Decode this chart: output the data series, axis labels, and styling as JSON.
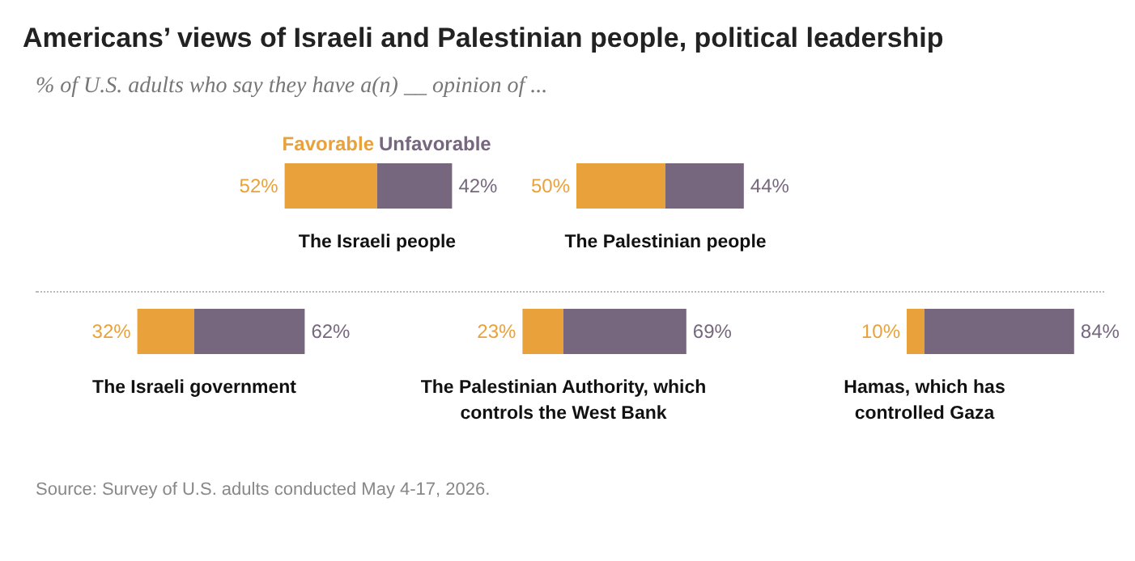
{
  "chart_data": [
    {
      "type": "bar",
      "orientation": "horizontal",
      "title": "Americans’ views of Israeli and Palestinian people, political leadership",
      "subtitle": "% of U.S. adults who say they have a(n) __ opinion of ...",
      "annotations": [
        "Source: Survey of U.S. adults conducted May 4-17, 2026."
      ],
      "xlabel": "The Israeli people",
      "stacked": true,
      "categories": [
        null
      ],
      "series": [
        {
          "name": "Favorable",
          "color": "#e9a23b",
          "values": [
            52
          ],
          "value_labels": [
            "52%"
          ]
        },
        {
          "name": "Unfavorable",
          "color": "#76677e",
          "values": [
            42
          ],
          "value_labels": [
            "42%"
          ]
        }
      ]
    },
    {
      "type": "bar",
      "orientation": "horizontal",
      "xlabel": "The Palestinian people",
      "stacked": true,
      "categories": [
        null
      ],
      "series": [
        {
          "color": "#e9a23b",
          "values": [
            50
          ],
          "value_labels": [
            "50%"
          ]
        },
        {
          "color": "#76677e",
          "values": [
            44
          ],
          "value_labels": [
            "44%"
          ]
        }
      ]
    },
    {
      "type": "bar",
      "orientation": "horizontal",
      "xlabel": "The Israeli government",
      "stacked": true,
      "categories": [
        null
      ],
      "series": [
        {
          "color": "#e9a23b",
          "values": [
            32
          ],
          "value_labels": [
            "32%"
          ]
        },
        {
          "color": "#76677e",
          "values": [
            62
          ],
          "value_labels": [
            "62%"
          ]
        }
      ]
    },
    {
      "type": "bar",
      "orientation": "horizontal",
      "xlabel": "The Palestinian Authority, which controls the West Bank",
      "stacked": true,
      "categories": [
        null
      ],
      "series": [
        {
          "color": "#e9a23b",
          "values": [
            23
          ],
          "value_labels": [
            "23%"
          ]
        },
        {
          "color": "#76677e",
          "values": [
            69
          ],
          "value_labels": [
            "69%"
          ]
        }
      ]
    },
    {
      "type": "bar",
      "orientation": "horizontal",
      "xlabel": "Hamas, which has controlled Gaza",
      "stacked": true,
      "categories": [
        null
      ],
      "series": [
        {
          "color": "#e9a23b",
          "values": [
            10
          ],
          "value_labels": [
            "10%"
          ]
        },
        {
          "color": "#76677e",
          "values": [
            84
          ],
          "value_labels": [
            "84%"
          ]
        }
      ]
    }
  ]
}
